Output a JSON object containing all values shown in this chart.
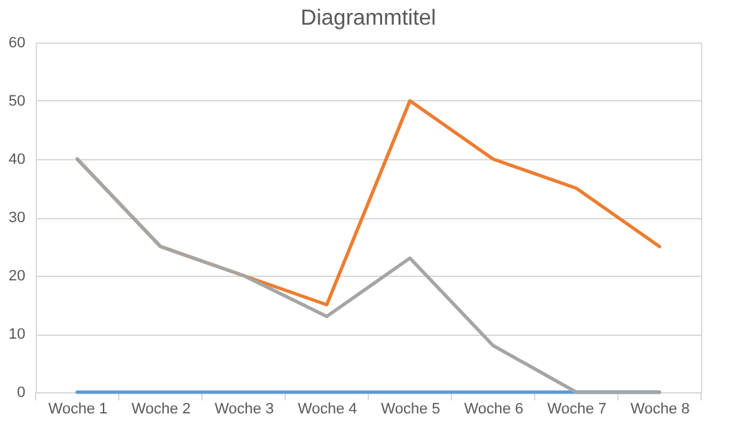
{
  "chart_data": {
    "type": "line",
    "title": "Diagrammtitel",
    "categories": [
      "Woche 1",
      "Woche 2",
      "Woche 3",
      "Woche 4",
      "Woche 5",
      "Woche 6",
      "Woche 7",
      "Woche 8"
    ],
    "series": [
      {
        "color": "#5b9bd5",
        "values": [
          0,
          0,
          0,
          0,
          0,
          0,
          0,
          0
        ]
      },
      {
        "color": "#ed7d31",
        "values": [
          40,
          25,
          20,
          15,
          50,
          40,
          35,
          25
        ]
      },
      {
        "color": "#a5a5a5",
        "values": [
          40,
          25,
          20,
          13,
          23,
          8,
          0,
          0
        ]
      }
    ],
    "ylim": [
      0,
      60
    ],
    "yticks": [
      0,
      10,
      20,
      30,
      40,
      50,
      60
    ],
    "grid": "y",
    "marker": "none",
    "line_style": "solid"
  }
}
